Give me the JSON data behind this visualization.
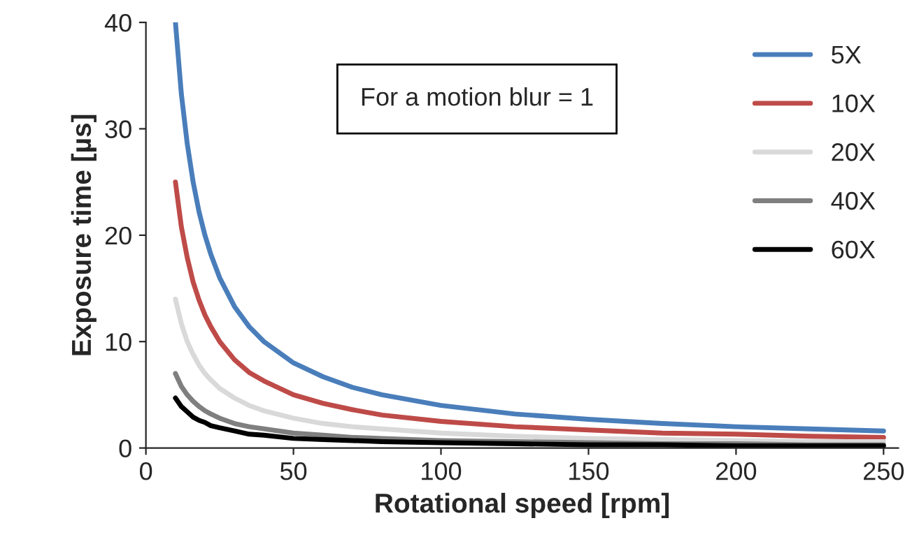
{
  "chart_data": {
    "type": "line",
    "xlabel": "Rotational speed [rpm]",
    "ylabel": "Exposure time [µs]",
    "annotations": [
      "For a motion blur = 1"
    ],
    "x": [
      10,
      12,
      14,
      16,
      18,
      20,
      22,
      25,
      30,
      35,
      40,
      50,
      60,
      70,
      80,
      100,
      125,
      150,
      175,
      200,
      225,
      250
    ],
    "xlim": [
      0,
      255
    ],
    "xticks": [
      0,
      50,
      100,
      150,
      200,
      250
    ],
    "ylim": [
      0,
      40
    ],
    "yticks": [
      0,
      10,
      20,
      30,
      40
    ],
    "grid": false,
    "legend": "top right",
    "marker": "none",
    "line_style": "solid",
    "series": [
      {
        "name": "5X",
        "color": "#4a7ebb",
        "values": [
          40,
          33.3,
          28.6,
          25,
          22.2,
          20,
          18.2,
          16,
          13.3,
          11.4,
          10,
          8,
          6.7,
          5.7,
          5,
          4,
          3.2,
          2.7,
          2.3,
          2,
          1.8,
          1.6
        ]
      },
      {
        "name": "10X",
        "color": "#be4b48",
        "values": [
          25,
          20.8,
          17.9,
          15.6,
          13.9,
          12.5,
          11.4,
          10,
          8.3,
          7.1,
          6.3,
          5,
          4.2,
          3.6,
          3.1,
          2.5,
          2,
          1.7,
          1.4,
          1.3,
          1.1,
          1.0
        ]
      },
      {
        "name": "20X",
        "color": "#d9d9d9",
        "values": [
          14,
          11.7,
          10,
          8.8,
          7.8,
          7,
          6.4,
          5.6,
          4.7,
          4,
          3.5,
          2.8,
          2.3,
          2,
          1.8,
          1.4,
          1.1,
          0.9,
          0.8,
          0.7,
          0.6,
          0.6
        ]
      },
      {
        "name": "40X",
        "color": "#7f7f7f",
        "values": [
          7,
          5.8,
          5,
          4.4,
          3.9,
          3.5,
          3.2,
          2.8,
          2.3,
          2,
          1.8,
          1.4,
          1.2,
          1,
          0.9,
          0.7,
          0.6,
          0.5,
          0.4,
          0.4,
          0.3,
          0.3
        ]
      },
      {
        "name": "60X",
        "color": "#000000",
        "values": [
          4.7,
          3.9,
          3.4,
          2.9,
          2.6,
          2.4,
          2.1,
          1.9,
          1.6,
          1.3,
          1.2,
          0.9,
          0.8,
          0.7,
          0.6,
          0.5,
          0.4,
          0.3,
          0.3,
          0.2,
          0.2,
          0.2
        ]
      }
    ]
  }
}
